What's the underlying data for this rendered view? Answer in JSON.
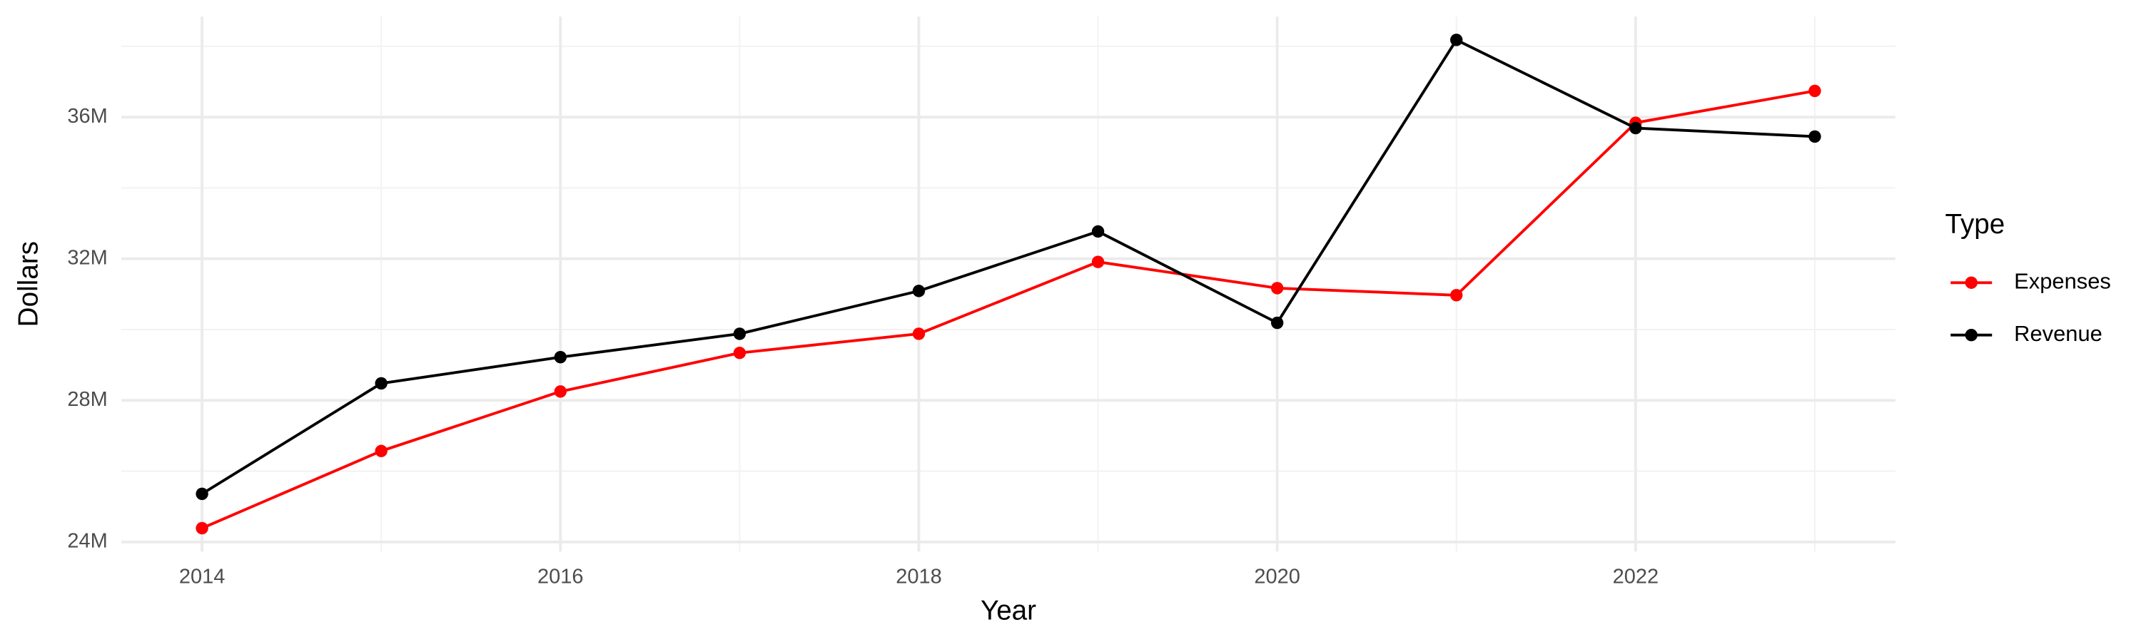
{
  "chart_data": {
    "type": "line",
    "x_label": "Year",
    "y_label": "Dollars",
    "legend_title": "Type",
    "legend_position": "right",
    "grid": true,
    "x": [
      2014,
      2015,
      2016,
      2017,
      2018,
      2019,
      2020,
      2021,
      2022,
      2023
    ],
    "series": [
      {
        "name": "Expenses",
        "color": "#ff0000",
        "values": [
          24390000,
          26570000,
          28250000,
          29340000,
          29880000,
          31910000,
          31170000,
          30970000,
          35840000,
          36740000
        ]
      },
      {
        "name": "Revenue",
        "color": "#000000",
        "values": [
          25360000,
          28480000,
          29220000,
          29880000,
          31090000,
          32770000,
          30190000,
          38180000,
          35690000,
          35450000
        ]
      }
    ],
    "xlim": [
      2013.55,
      2023.45
    ],
    "xticks": [
      2014,
      2016,
      2018,
      2020,
      2022
    ],
    "ylim": [
      23730000,
      38840000
    ],
    "yticks": [
      {
        "value": 24000000,
        "label": "24M"
      },
      {
        "value": 28000000,
        "label": "28M"
      },
      {
        "value": 32000000,
        "label": "32M"
      },
      {
        "value": 36000000,
        "label": "36M"
      }
    ]
  }
}
